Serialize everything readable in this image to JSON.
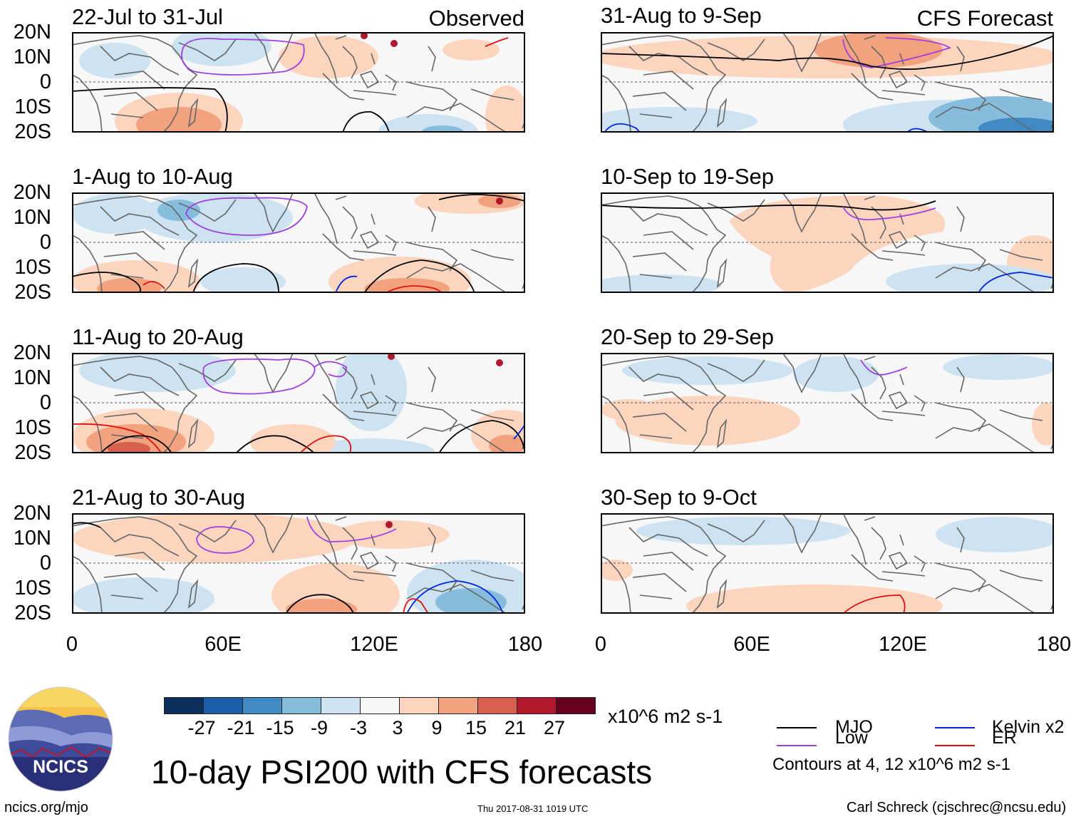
{
  "title": "10-day PSI200 with CFS forecasts",
  "observed_label": "Observed",
  "forecast_label": "CFS Forecast",
  "lat_labels": [
    "20N",
    "10N",
    "0",
    "10S",
    "20S"
  ],
  "lon_labels": [
    "0",
    "60E",
    "120E",
    "180"
  ],
  "observed_panels": [
    {
      "period": "22-Jul to 31-Jul"
    },
    {
      "period": "1-Aug to 10-Aug"
    },
    {
      "period": "11-Aug to 20-Aug"
    },
    {
      "period": "21-Aug to 30-Aug"
    }
  ],
  "forecast_panels": [
    {
      "period": "31-Aug to 9-Sep"
    },
    {
      "period": "10-Sep to 19-Sep"
    },
    {
      "period": "20-Sep to 29-Sep"
    },
    {
      "period": "30-Sep to 9-Oct"
    }
  ],
  "colorbar": {
    "ticks": [
      "-27",
      "-21",
      "-15",
      "-9",
      "-3",
      "3",
      "9",
      "15",
      "21",
      "27"
    ],
    "unit": "x10^6 m2 s-1",
    "colors": [
      "#0b2e5c",
      "#1c5fa8",
      "#3f8ac4",
      "#86bcdc",
      "#cde3f1",
      "#f7f7f7",
      "#fcd5bf",
      "#f2a27f",
      "#d6604d",
      "#b2182b",
      "#67001f"
    ]
  },
  "legend": {
    "items": [
      {
        "label": "MJO",
        "color": "#000000"
      },
      {
        "label": "Kelvin x2",
        "color": "#0022dd"
      },
      {
        "label": "Low",
        "color": "#a040e0"
      },
      {
        "label": "ER",
        "color": "#e01010"
      }
    ],
    "note": "Contours at 4, 12 x10^6 m2 s-1"
  },
  "logo_text": "NCICS",
  "footer": {
    "website": "ncics.org/mjo",
    "timestamp": "Thu 2017-08-31 1019 UTC",
    "author": "Carl Schreck (cjschrec@ncsu.edu)"
  }
}
